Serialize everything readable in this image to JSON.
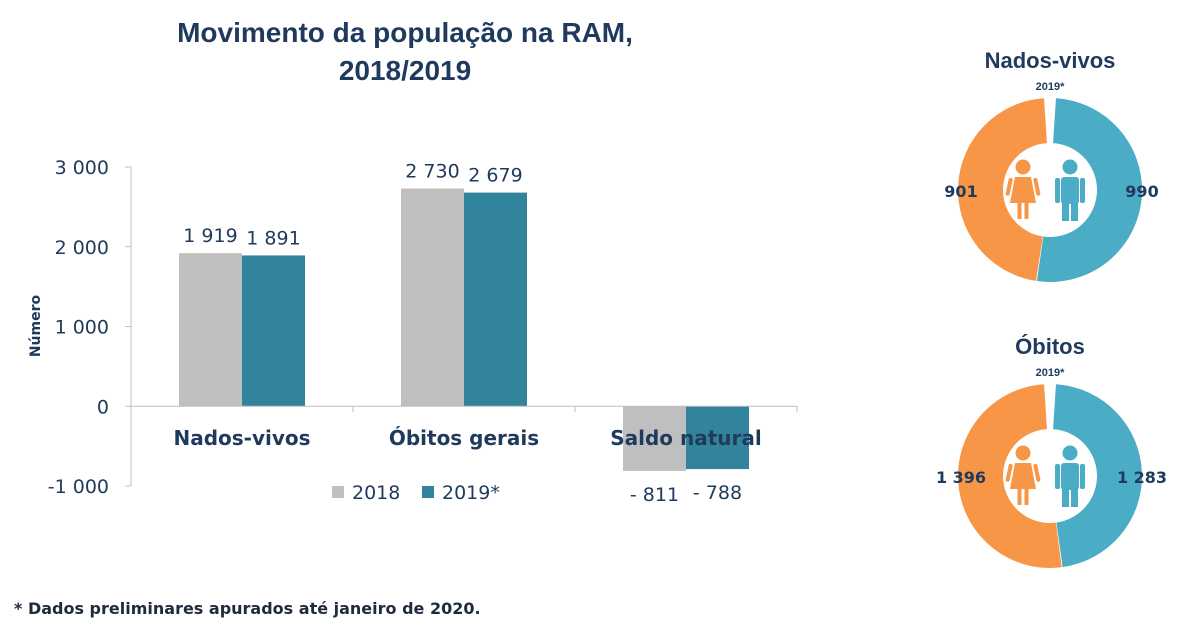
{
  "title_line1": "Movimento da população na RAM,",
  "title_line2": "2018/2019",
  "footnote": "* Dados preliminares apurados até janeiro de 2020.",
  "colors": {
    "bar_2018": "#bfbfbf",
    "bar_2019": "#31849b",
    "female": "#f79646",
    "male": "#4bacc6",
    "text_dark": "#1f3a5c"
  },
  "chart_data": [
    {
      "type": "bar",
      "title": "Movimento da população na RAM, 2018/2019",
      "categories": [
        "Nados-vivos",
        "Óbitos gerais",
        "Saldo natural"
      ],
      "series": [
        {
          "name": "2018",
          "values": [
            1919,
            2730,
            -811
          ]
        },
        {
          "name": "2019*",
          "values": [
            1891,
            2679,
            -788
          ]
        }
      ],
      "data_labels": [
        [
          "1 919",
          "2 730",
          "- 811"
        ],
        [
          "1 891",
          "2 679",
          "- 788"
        ]
      ],
      "ylabel": "Número",
      "ylim": [
        -1000,
        3000
      ],
      "yticks": [
        -1000,
        0,
        1000,
        2000,
        3000
      ],
      "ytick_labels": [
        "-1 000",
        "0",
        "1 000",
        "2 000",
        "3 000"
      ],
      "grid": false,
      "legend": "bottom"
    },
    {
      "type": "pie",
      "title": "Nados-vivos",
      "subtitle": "2019*",
      "categories": [
        "Mulheres",
        "Homens"
      ],
      "values": [
        901,
        990
      ],
      "labels": [
        "901",
        "990"
      ]
    },
    {
      "type": "pie",
      "title": "Óbitos",
      "subtitle": "2019*",
      "categories": [
        "Mulheres",
        "Homens"
      ],
      "values": [
        1396,
        1283
      ],
      "labels": [
        "1 396",
        "1 283"
      ]
    }
  ],
  "icons": {
    "female": "female-person-icon",
    "male": "male-person-icon"
  }
}
